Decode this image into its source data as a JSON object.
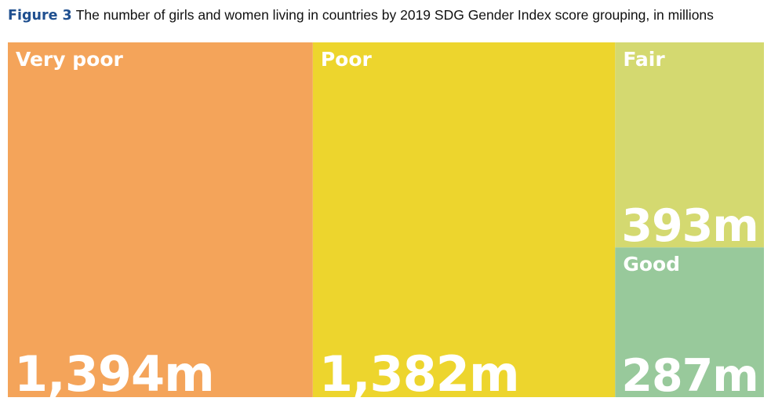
{
  "header": {
    "figure_label": "Figure 3",
    "title": "The number of girls and women living in countries by 2019 SDG Gender Index score grouping, in millions"
  },
  "chart_data": {
    "type": "treemap",
    "title": "The number of girls and women living in countries by 2019 SDG Gender Index score grouping, in millions",
    "units": "millions",
    "items": [
      {
        "name": "Very poor",
        "value": 1394,
        "label": "1,394m",
        "color": "#f4a45a"
      },
      {
        "name": "Poor",
        "value": 1382,
        "label": "1,382m",
        "color": "#edd52d"
      },
      {
        "name": "Fair",
        "value": 393,
        "label": "393m",
        "color": "#d4d970"
      },
      {
        "name": "Good",
        "value": 287,
        "label": "287m",
        "color": "#98c99b"
      }
    ]
  }
}
